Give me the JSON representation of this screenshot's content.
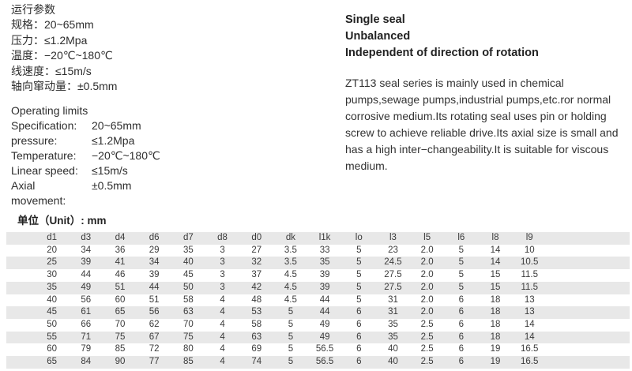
{
  "params_cn": {
    "title": "运行参数",
    "lines": [
      "规格：20~65mm",
      "压力：≤1.2Mpa",
      "温度：−20℃~180℃",
      "线速度：≤15m/s",
      "轴向窜动量：±0.5mm"
    ]
  },
  "limits_en": {
    "title": "Operating limits",
    "rows": [
      {
        "label": "Specification:",
        "value": "20~65mm"
      },
      {
        "label": "pressure:",
        "value": "≤1.2Mpa"
      },
      {
        "label": "Temperature:",
        "value": "−20℃~180℃"
      },
      {
        "label": "Linear speed:",
        "value": "≤15m/s"
      },
      {
        "label": "Axial movement:",
        "value": "±0.5mm"
      }
    ]
  },
  "features": [
    "Single seal",
    "Unbalanced",
    "Independent of direction of rotation"
  ],
  "description": "ZT113 seal series is mainly used in chemical pumps,sewage pumps,industrial pumps,etc.ror normal corrosive medium.Its rotating seal uses pin or holding screw to achieve reliable drive.Its axial size is small and has a high inter−changeability.It is suitable for viscous medium.",
  "unit_label": "单位（Unit）: mm",
  "table": {
    "headers": [
      "d1",
      "d3",
      "d4",
      "d6",
      "d7",
      "d8",
      "d0",
      "dk",
      "l1k",
      "lo",
      "l3",
      "l5",
      "l6",
      "l8",
      "l9"
    ],
    "rows": [
      [
        "20",
        "34",
        "36",
        "29",
        "35",
        "3",
        "27",
        "3.5",
        "33",
        "5",
        "23",
        "2.0",
        "5",
        "14",
        "10"
      ],
      [
        "25",
        "39",
        "41",
        "34",
        "40",
        "3",
        "32",
        "3.5",
        "35",
        "5",
        "24.5",
        "2.0",
        "5",
        "14",
        "10.5"
      ],
      [
        "30",
        "44",
        "46",
        "39",
        "45",
        "3",
        "37",
        "4.5",
        "39",
        "5",
        "27.5",
        "2.0",
        "5",
        "15",
        "11.5"
      ],
      [
        "35",
        "49",
        "51",
        "44",
        "50",
        "3",
        "42",
        "4.5",
        "39",
        "5",
        "27.5",
        "2.0",
        "5",
        "15",
        "11.5"
      ],
      [
        "40",
        "56",
        "60",
        "51",
        "58",
        "4",
        "48",
        "4.5",
        "44",
        "5",
        "31",
        "2.0",
        "6",
        "18",
        "13"
      ],
      [
        "45",
        "61",
        "65",
        "56",
        "63",
        "4",
        "53",
        "5",
        "44",
        "6",
        "31",
        "2.0",
        "6",
        "18",
        "13"
      ],
      [
        "50",
        "66",
        "70",
        "62",
        "70",
        "4",
        "58",
        "5",
        "49",
        "6",
        "35",
        "2.5",
        "6",
        "18",
        "14"
      ],
      [
        "55",
        "71",
        "75",
        "67",
        "75",
        "4",
        "63",
        "5",
        "49",
        "6",
        "35",
        "2.5",
        "6",
        "18",
        "14"
      ],
      [
        "60",
        "79",
        "85",
        "72",
        "80",
        "4",
        "69",
        "5",
        "56.5",
        "6",
        "40",
        "2.5",
        "6",
        "19",
        "16.5"
      ],
      [
        "65",
        "84",
        "90",
        "77",
        "85",
        "4",
        "74",
        "5",
        "56.5",
        "6",
        "40",
        "2.5",
        "6",
        "19",
        "16.5"
      ]
    ],
    "band_color": "#e8e8e8"
  }
}
